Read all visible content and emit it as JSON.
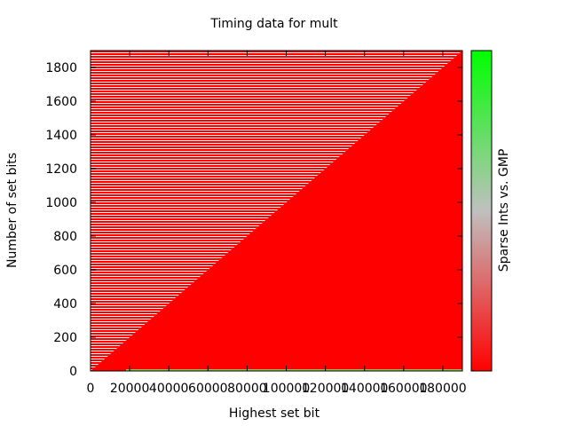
{
  "chart_data": {
    "type": "heatmap",
    "title": "Timing data for mult",
    "xlabel": "Highest set bit",
    "ylabel": "Number of set bits",
    "colorbar_label": "Sparse Ints vs. GMP",
    "xlim": [
      0,
      190000
    ],
    "ylim": [
      0,
      1900
    ],
    "x_ticks": [
      0,
      20000,
      40000,
      60000,
      80000,
      100000,
      120000,
      140000,
      160000,
      180000
    ],
    "x_tick_labels": [
      "0",
      "20000",
      "40000",
      "60000",
      "80000",
      "100000",
      "120000",
      "140000",
      "160000",
      "180000"
    ],
    "y_ticks": [
      0,
      200,
      400,
      600,
      800,
      1000,
      1200,
      1400,
      1600,
      1800
    ],
    "y_tick_labels": [
      "0",
      "200",
      "400",
      "600",
      "800",
      "1000",
      "1200",
      "1400",
      "1600",
      "1800"
    ],
    "grid": false,
    "colorbar_colors": {
      "low": "#ff0000",
      "mid": "#c0c0c0",
      "high": "#00ff00"
    },
    "region_boundary": {
      "x": [
        0,
        190000
      ],
      "y": [
        0,
        1900
      ]
    },
    "colors": {
      "filled_region": "#ff0000",
      "stripe_color": "#ff0000",
      "stripe_gap": "#ffffff",
      "bottom_edge": "#8fbf55"
    }
  }
}
